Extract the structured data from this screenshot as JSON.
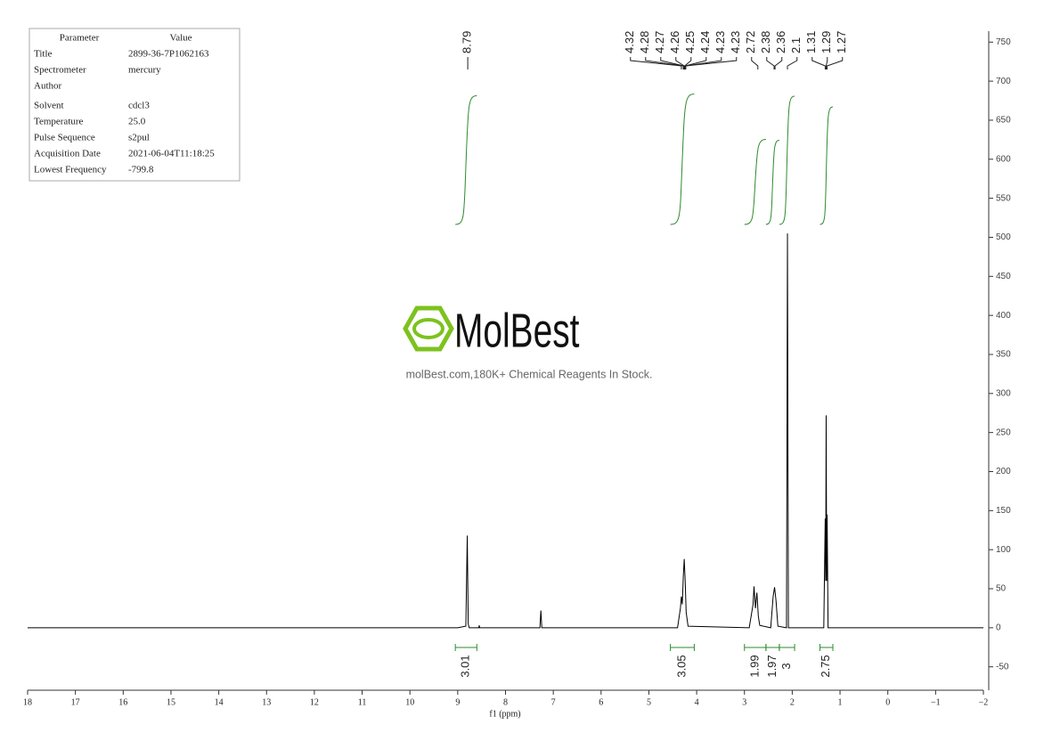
{
  "chart_data": {
    "type": "spectrum",
    "color": "#000000",
    "integral_color": "#2e8b2e",
    "x_label": "f1 (ppm)",
    "xlim": [
      18,
      -2
    ],
    "xticks": [
      18,
      17,
      16,
      15,
      14,
      13,
      12,
      11,
      10,
      9,
      8,
      7,
      6,
      5,
      4,
      3,
      2,
      1,
      0,
      {
        "value": -1,
        "label": "−1"
      },
      {
        "value": -2,
        "label": "−2"
      }
    ],
    "ylim": [
      -80,
      764
    ],
    "yticks": [
      -50,
      0,
      50,
      100,
      150,
      200,
      250,
      300,
      350,
      400,
      450,
      500,
      550,
      600,
      650,
      700,
      750
    ],
    "x": [
      18,
      9.0,
      8.83,
      8.8,
      8.78,
      8.76,
      8.56,
      8.55,
      8.54,
      7.28,
      7.26,
      7.24,
      4.4,
      4.34,
      4.32,
      4.3,
      4.28,
      4.26,
      4.24,
      4.22,
      4.18,
      2.9,
      2.82,
      2.8,
      2.77,
      2.74,
      2.71,
      2.68,
      2.45,
      2.4,
      2.37,
      2.34,
      2.3,
      2.12,
      2.1,
      2.08,
      1.34,
      1.31,
      1.3,
      1.29,
      1.28,
      1.27,
      1.25,
      -2
    ],
    "values": [
      0,
      0,
      2,
      118,
      5,
      0,
      0,
      3,
      0,
      0,
      22,
      0,
      0,
      25,
      40,
      30,
      65,
      88,
      60,
      20,
      2,
      0,
      30,
      53,
      25,
      45,
      15,
      3,
      0,
      40,
      52,
      35,
      2,
      0,
      505,
      0,
      0,
      140,
      60,
      272,
      60,
      145,
      0,
      0
    ],
    "peak_labels": [
      8.79,
      4.32,
      4.28,
      4.27,
      4.26,
      4.25,
      4.24,
      4.23,
      4.23,
      2.72,
      2.38,
      2.36,
      2.1,
      1.31,
      1.29,
      1.27
    ],
    "integrals": [
      {
        "range": [
          9.05,
          8.6
        ],
        "value": 3.01
      },
      {
        "range": [
          4.55,
          4.05
        ],
        "value": 3.05
      },
      {
        "range": [
          3.0,
          2.55
        ],
        "value": 1.99
      },
      {
        "range": [
          2.55,
          2.27
        ],
        "value": 1.97
      },
      {
        "range": [
          2.27,
          1.95
        ],
        "value": 3.0
      },
      {
        "range": [
          1.42,
          1.15
        ],
        "value": 2.75
      }
    ]
  },
  "parameters": {
    "header": [
      "Parameter",
      "Value"
    ],
    "rows": [
      [
        "Title",
        "2899-36-7P1062163"
      ],
      [
        "Spectrometer",
        "mercury"
      ],
      [
        "Author"
      ],
      [
        "Solvent",
        "cdcl3"
      ],
      [
        "Temperature",
        "25.0"
      ],
      [
        "Pulse Sequence",
        "s2pul"
      ],
      [
        "Acquisition Date",
        "2021-06-04T11:18:25"
      ],
      [
        "Lowest Frequency",
        "-799.8"
      ]
    ]
  },
  "watermark": {
    "brand": "MolBest",
    "tagline": "molBest.com,180K+ Chemical Reagents In Stock."
  }
}
